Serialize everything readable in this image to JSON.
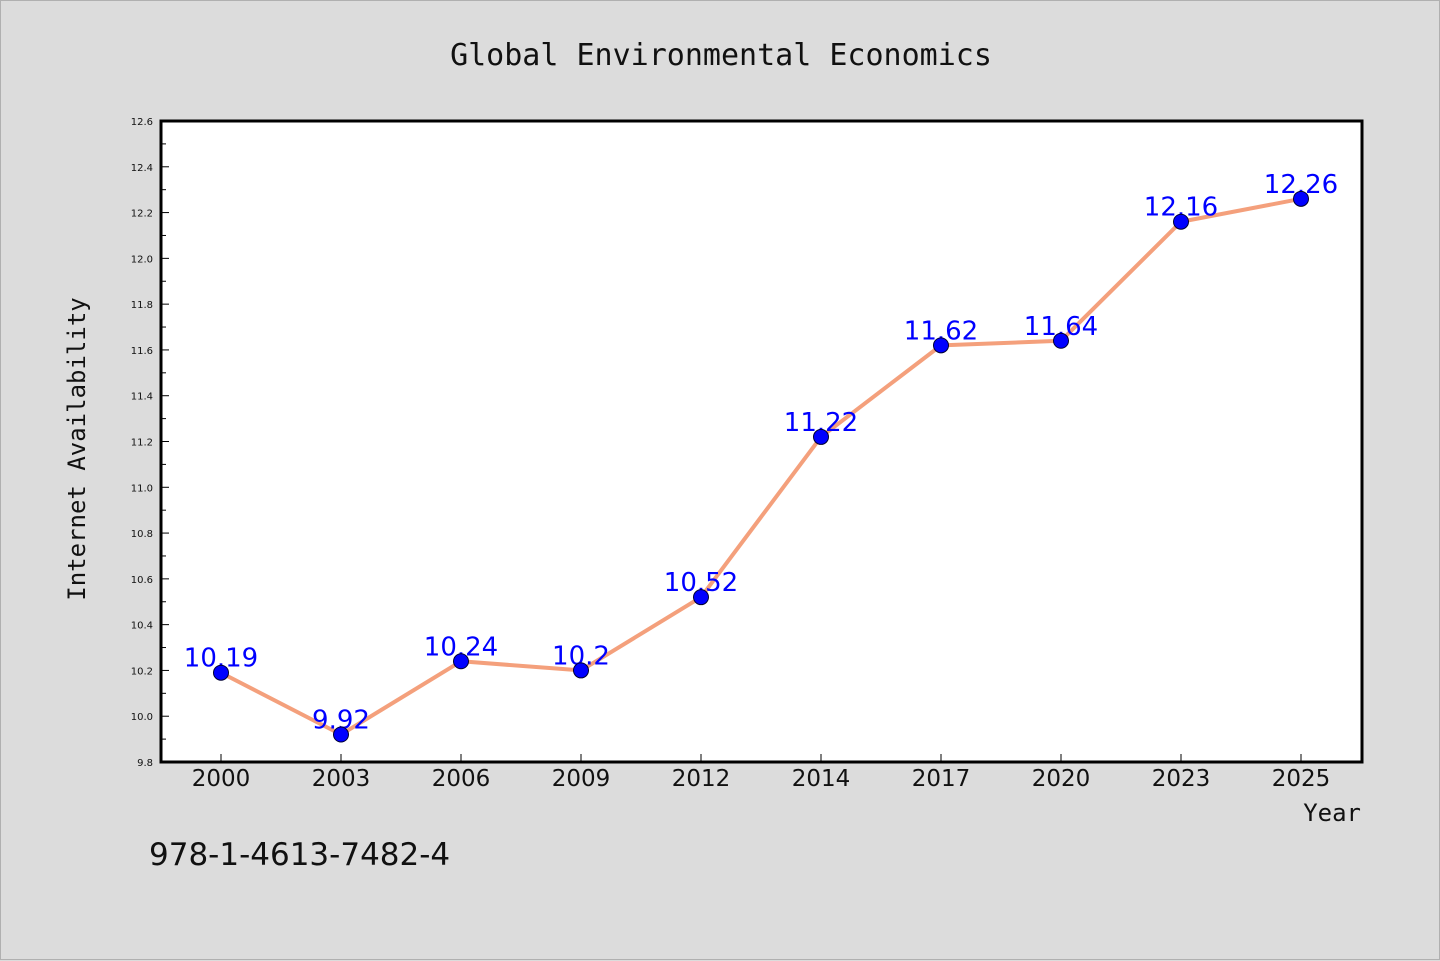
{
  "chart_data": {
    "type": "line",
    "title": "Global Environmental Economics",
    "xlabel": "Year",
    "ylabel": "Internet Availability",
    "categories": [
      "2000",
      "2003",
      "2006",
      "2009",
      "2012",
      "2014",
      "2017",
      "2020",
      "2023",
      "2025"
    ],
    "series": [
      {
        "values": [
          10.19,
          9.92,
          10.24,
          10.2,
          10.52,
          11.22,
          11.62,
          11.64,
          12.16,
          12.26
        ],
        "data_labels": [
          "10.19",
          "9.92",
          "10.24",
          "10.2",
          "10.52",
          "11.22",
          "11.62",
          "11.64",
          "12.16",
          "12.26"
        ],
        "line_color": "#f4a07c",
        "marker_color": "#0000ff"
      }
    ],
    "ylim": [
      9.8,
      12.6
    ],
    "yticks": [
      "9.8",
      "10.0",
      "10.2",
      "10.4",
      "10.6",
      "10.8",
      "11.0",
      "11.2",
      "11.4",
      "11.6",
      "11.8",
      "12.0",
      "12.2",
      "12.4",
      "12.6"
    ],
    "grid": false,
    "legend": "none"
  },
  "footer": {
    "isbn": "978-1-4613-7482-4"
  },
  "colors": {
    "background": "#dcdcdc",
    "plot_background": "#ffffff",
    "label_color": "#0000ff"
  }
}
